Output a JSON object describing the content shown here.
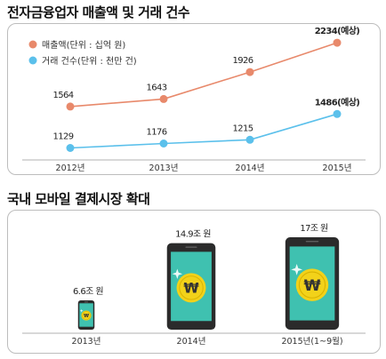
{
  "titles": {
    "chart1": "전자금융업자 매출액 및 거래 건수",
    "chart2": "국내 모바일 결제시장 확대"
  },
  "chart_data": [
    {
      "type": "line",
      "title": "전자금융업자 매출액 및 거래 건수",
      "categories": [
        "2012년",
        "2013년",
        "2014년",
        "2015년"
      ],
      "series": [
        {
          "name": "매출액(단위 : 십억 원)",
          "color": "#e8896b",
          "values": [
            1564,
            1643,
            1926,
            2234
          ],
          "labels": [
            "1564",
            "1643",
            "1926",
            "2234(예상)"
          ]
        },
        {
          "name": "거래 건수(단위 : 천만 건)",
          "color": "#5bc0eb",
          "values": [
            1129,
            1176,
            1215,
            1486
          ],
          "labels": [
            "1129",
            "1176",
            "1215",
            "1486(예상)"
          ]
        }
      ],
      "ylim": [
        1050,
        2300
      ],
      "legend": "top-left",
      "grid": false
    },
    {
      "type": "bar",
      "title": "국내 모바일 결제시장 확대",
      "categories": [
        "2013년",
        "2014년",
        "2015년(1~9월)"
      ],
      "values": [
        6.6,
        14.9,
        17
      ],
      "labels": [
        "6.6조 원",
        "14.9조 원",
        "17조 원"
      ],
      "unit": "조 원",
      "mark": "smartphone",
      "icon_symbol": "₩"
    }
  ],
  "colors": {
    "line_sales": "#e8896b",
    "line_count": "#5bc0eb",
    "phone_body": "#2b2b2b",
    "phone_screen": "#3fc1b0",
    "coin": "#f2d21a"
  }
}
